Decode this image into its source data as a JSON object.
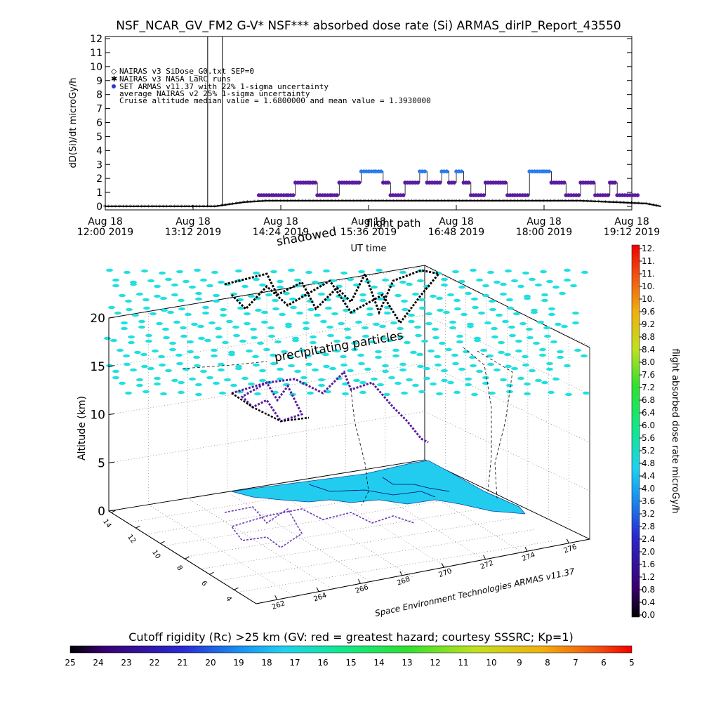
{
  "chart_data": [
    {
      "type": "line",
      "title": "NSF_NCAR_GV_FM2 G-V* NSF*** absorbed dose rate (Si) ARMAS_dirIP_Report_43550",
      "ylabel": "dD(Si)/dt microGy/h",
      "xlabel": "UT time",
      "ylim": [
        0,
        12
      ],
      "y_ticks": [
        "0",
        "1",
        "2",
        "3",
        "4",
        "5",
        "6",
        "7",
        "8",
        "9",
        "10",
        "11",
        "12"
      ],
      "x_ticks": [
        {
          "date": "Aug 18",
          "time": "12:00 2019"
        },
        {
          "date": "Aug 18",
          "time": "13:12 2019"
        },
        {
          "date": "Aug 18",
          "time": "14:24 2019"
        },
        {
          "date": "Aug 18",
          "time": "15:36 2019"
        },
        {
          "date": "Aug 18",
          "time": "16:48 2019"
        },
        {
          "date": "Aug 18",
          "time": "18:00 2019"
        },
        {
          "date": "Aug 18",
          "time": "19:12 2019"
        }
      ],
      "x_range_hours": [
        12.0,
        19.2
      ],
      "legend": [
        "NAIRAS v3 SiDose_G0.txt SEP=0",
        "NAIRAS v3 NASA LaRC runs",
        "SET ARMAS v11.37 with 22% 1-sigma uncertainty",
        "average NAIRAS v2 25% 1-sigma uncertainty",
        "Cruise altitude median value = 1.6800000 and mean value = 1.3930000"
      ],
      "legend_placement": "top-left",
      "annotations": [
        "shadowed",
        "flight path"
      ],
      "series": [
        {
          "name": "SET ARMAS v11.37 with 22% 1-sigma uncertainty",
          "points": [
            [
              14.1,
              0.8
            ],
            [
              14.3,
              0.8
            ],
            [
              14.5,
              0.8
            ],
            [
              14.6,
              1.7
            ],
            [
              14.8,
              1.7
            ],
            [
              14.9,
              0.8
            ],
            [
              15.1,
              0.8
            ],
            [
              15.2,
              1.7
            ],
            [
              15.4,
              1.7
            ],
            [
              15.5,
              2.5
            ],
            [
              15.7,
              2.5
            ],
            [
              15.8,
              1.7
            ],
            [
              15.9,
              0.8
            ],
            [
              16.1,
              1.7
            ],
            [
              16.3,
              2.5
            ],
            [
              16.4,
              1.7
            ],
            [
              16.6,
              2.5
            ],
            [
              16.7,
              1.7
            ],
            [
              16.8,
              2.5
            ],
            [
              16.9,
              1.7
            ],
            [
              17.0,
              0.8
            ],
            [
              17.2,
              1.7
            ],
            [
              17.4,
              1.7
            ],
            [
              17.5,
              0.8
            ],
            [
              17.6,
              0.8
            ],
            [
              17.8,
              2.5
            ],
            [
              18.0,
              2.5
            ],
            [
              18.1,
              1.7
            ],
            [
              18.3,
              0.8
            ],
            [
              18.5,
              1.7
            ],
            [
              18.7,
              0.8
            ],
            [
              18.9,
              1.7
            ],
            [
              19.0,
              0.8
            ],
            [
              19.3,
              0.8
            ]
          ]
        },
        {
          "name": "NAIRAS v3 NASA LaRC runs",
          "points": [
            [
              12.0,
              0.0
            ],
            [
              13.5,
              0.0
            ],
            [
              13.9,
              0.3
            ],
            [
              14.2,
              0.4
            ],
            [
              15.5,
              0.4
            ],
            [
              17.0,
              0.4
            ],
            [
              18.5,
              0.4
            ],
            [
              19.4,
              0.2
            ],
            [
              19.6,
              0.0
            ]
          ]
        }
      ],
      "spike": {
        "x": [
          13.4,
          13.6
        ],
        "y": 12
      }
    },
    {
      "type": "scatter",
      "subtype": "3d-trajectory",
      "zlabel": "Altitude (km)",
      "z_ticks": [
        "0",
        "5",
        "10",
        "15",
        "20"
      ],
      "zlim": [
        0,
        20
      ],
      "lon_ticks": [
        "262",
        "264",
        "266",
        "268",
        "270",
        "272",
        "274",
        "276"
      ],
      "lat_ticks": [
        "14",
        "12",
        "10",
        "8",
        "6",
        "4"
      ],
      "annotations": [
        "precipitating particles"
      ],
      "credit": "Space Environment Technologies ARMAS v11.37"
    }
  ],
  "colorbar_right": {
    "label": "flight absorbed dose rate microGy/h",
    "ticks": [
      "0.0",
      "0.4",
      "0.8",
      "1.2",
      "1.6",
      "2.0",
      "2.4",
      "2.8",
      "3.2",
      "3.6",
      "4.0",
      "4.4",
      "4.8",
      "5.2",
      "5.6",
      "6.0",
      "6.4",
      "6.8",
      "7.2",
      "7.6",
      "8.0",
      "8.4",
      "8.8",
      "9.2",
      "9.6",
      "10.",
      "10.",
      "11.",
      "11.",
      "12."
    ]
  },
  "colorbar_bottom": {
    "label": "Cutoff rigidity (Rc) >25 km (GV: red = greatest hazard; courtesy SSSRC; Kp=1)",
    "ticks": [
      "25",
      "24",
      "23",
      "22",
      "21",
      "20",
      "19",
      "18",
      "17",
      "16",
      "15",
      "14",
      "13",
      "12",
      "11",
      "10",
      "9",
      "8",
      "7",
      "6",
      "5"
    ]
  },
  "colors": {
    "armas": "#5a1aa0",
    "armas_high": "#2a7af0",
    "particles": "#20e0e0",
    "surface": "#22ccee"
  }
}
